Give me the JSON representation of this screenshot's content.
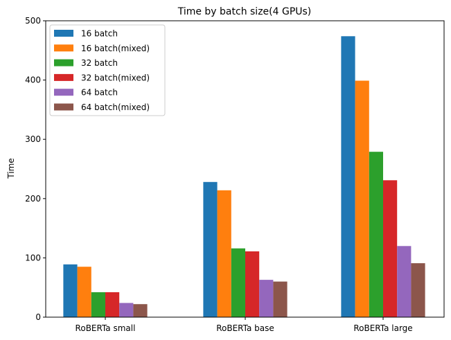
{
  "chart_data": {
    "type": "bar",
    "title": "Time by batch size(4 GPUs)",
    "xlabel": "",
    "ylabel": "Time",
    "ylim": [
      0,
      500
    ],
    "yticks": [
      0,
      100,
      200,
      300,
      400,
      500
    ],
    "grid": false,
    "legend_position": "top-left",
    "categories": [
      "RoBERTa small",
      "RoBERTa base",
      "RoBERTa large"
    ],
    "series": [
      {
        "name": "16 batch",
        "color": "#1f77b4",
        "values": [
          89,
          228,
          474
        ]
      },
      {
        "name": "16 batch(mixed)",
        "color": "#ff7f0e",
        "values": [
          85,
          214,
          399
        ]
      },
      {
        "name": "32 batch",
        "color": "#2ca02c",
        "values": [
          42,
          116,
          279
        ]
      },
      {
        "name": "32 batch(mixed)",
        "color": "#d62728",
        "values": [
          42,
          111,
          231
        ]
      },
      {
        "name": "64 batch",
        "color": "#9467bd",
        "values": [
          24,
          63,
          120
        ]
      },
      {
        "name": "64 batch(mixed)",
        "color": "#8c564b",
        "values": [
          22,
          60,
          91
        ]
      }
    ]
  }
}
